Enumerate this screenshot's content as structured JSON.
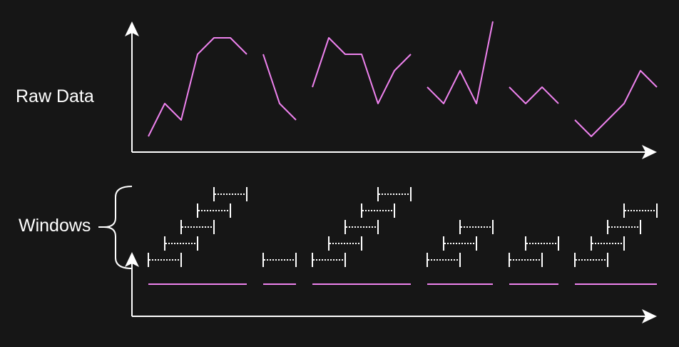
{
  "labels": {
    "raw": "Raw Data",
    "windows": "Windows"
  },
  "colors": {
    "background": "#161616",
    "axis": "#ffffff",
    "data_line": "#ee82ee",
    "window": "#ffffff"
  },
  "segments": [
    {
      "points": [
        [
          0,
          1
        ],
        [
          1,
          3
        ],
        [
          2,
          2
        ],
        [
          3,
          6
        ],
        [
          4,
          7
        ],
        [
          5,
          7
        ],
        [
          6,
          6
        ]
      ]
    },
    {
      "points": [
        [
          7,
          6
        ],
        [
          8,
          3
        ],
        [
          9,
          2
        ]
      ]
    },
    {
      "points": [
        [
          10,
          4
        ],
        [
          11,
          7
        ],
        [
          12,
          6
        ],
        [
          13,
          6
        ],
        [
          14,
          3
        ],
        [
          15,
          5
        ],
        [
          16,
          6
        ]
      ]
    },
    {
      "points": [
        [
          17,
          4
        ],
        [
          18,
          3
        ],
        [
          19,
          5
        ],
        [
          20,
          3
        ],
        [
          21,
          8
        ]
      ]
    },
    {
      "points": [
        [
          22,
          4
        ],
        [
          23,
          3
        ],
        [
          24,
          4
        ],
        [
          25,
          3
        ]
      ]
    },
    {
      "points": [
        [
          26,
          2
        ],
        [
          27,
          1
        ],
        [
          28,
          2
        ],
        [
          29,
          3
        ],
        [
          30,
          5
        ],
        [
          31,
          4
        ]
      ]
    }
  ]
}
